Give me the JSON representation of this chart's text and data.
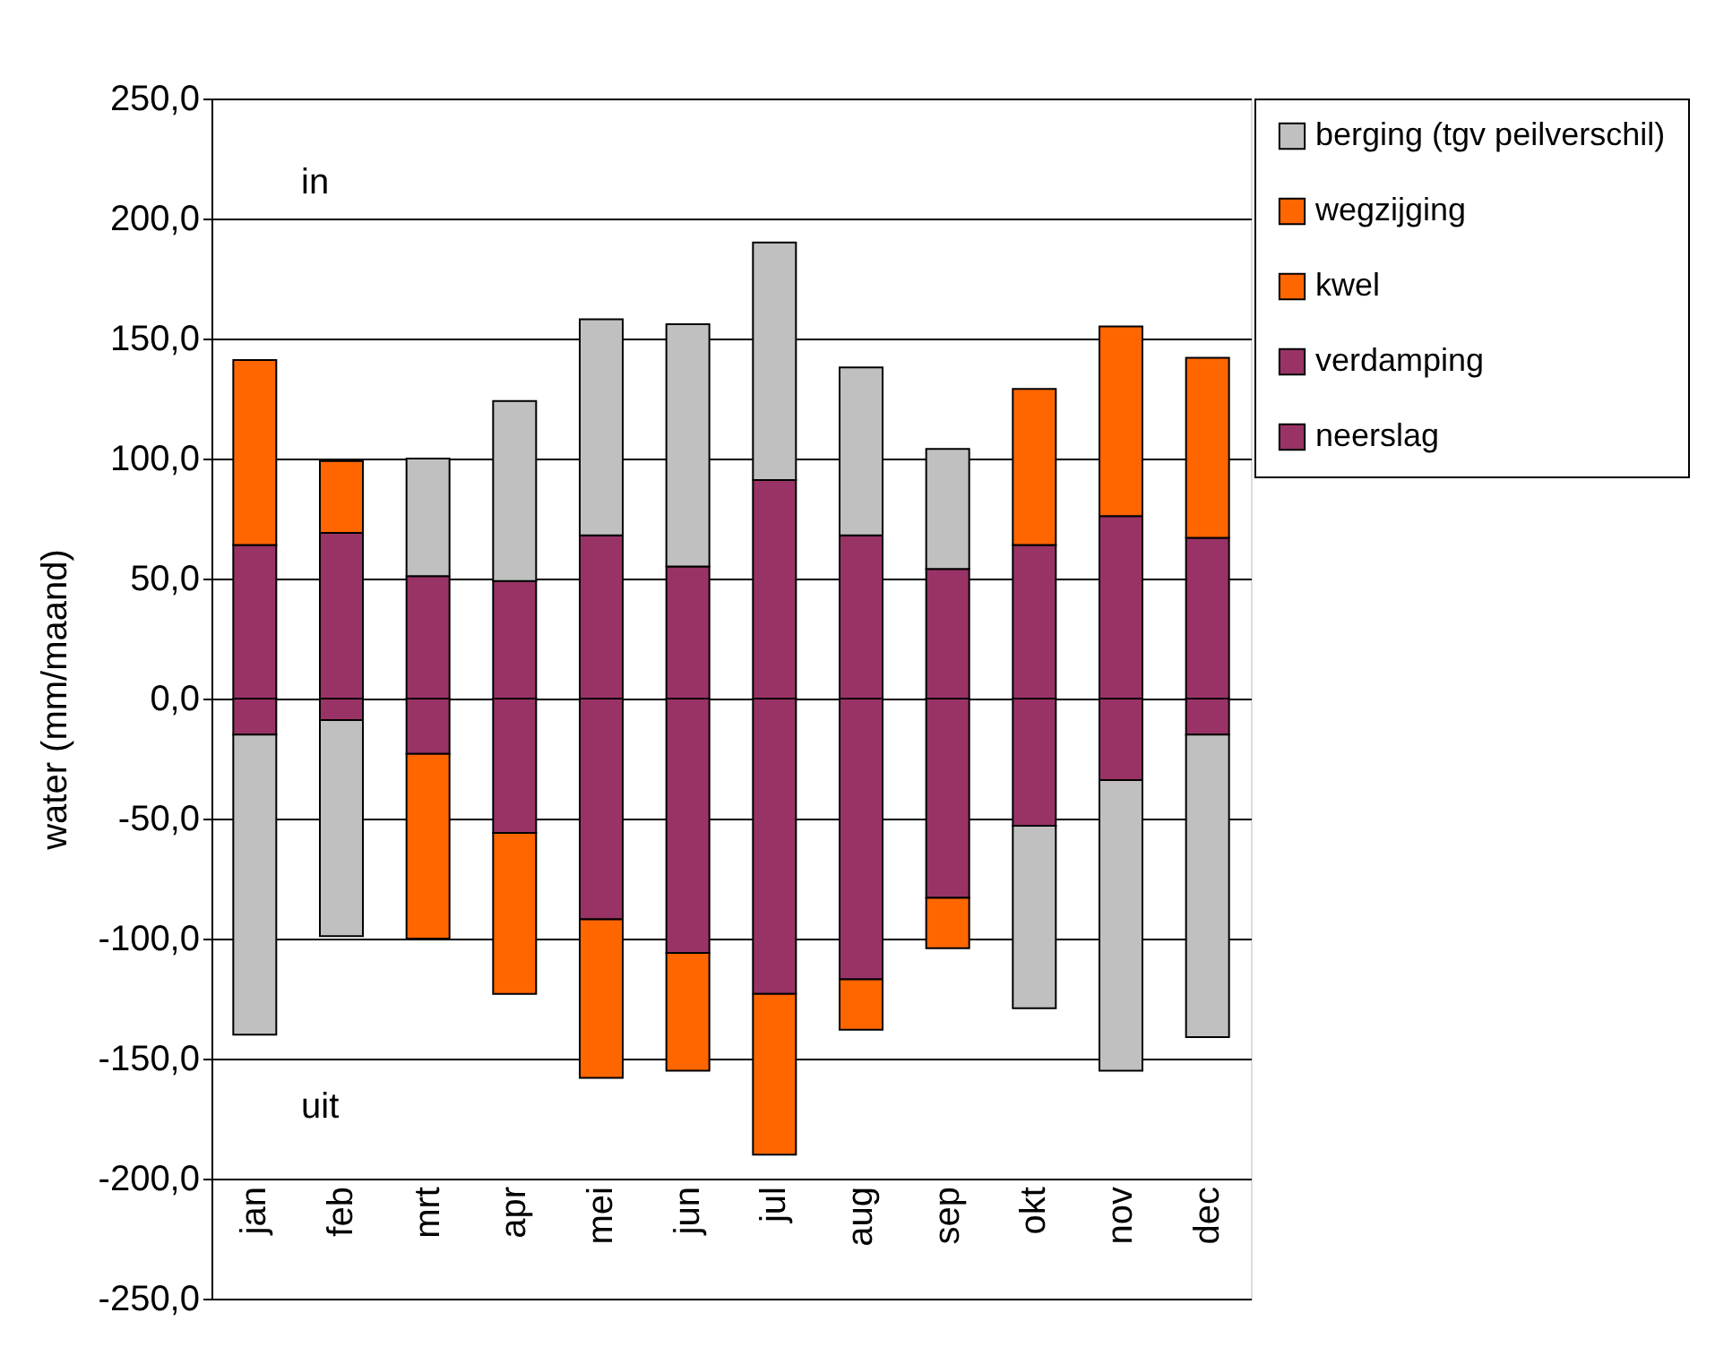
{
  "chart_data": {
    "type": "bar",
    "stacked": true,
    "ylabel": "water (mm/maand)",
    "categories": [
      "jan",
      "feb",
      "mrt",
      "apr",
      "mei",
      "jun",
      "jul",
      "aug",
      "sep",
      "okt",
      "nov",
      "dec"
    ],
    "series": [
      {
        "name": "neerslag",
        "color": "#993366",
        "values": [
          64,
          69,
          51,
          49,
          68,
          55,
          91,
          68,
          54,
          64,
          76,
          67
        ]
      },
      {
        "name": "verdamping",
        "color": "#993366",
        "values": [
          -15,
          -9,
          -23,
          -56,
          -92,
          -106,
          -123,
          -117,
          -83,
          -53,
          -34,
          -15
        ]
      },
      {
        "name": "kwel",
        "color": "#ff6600",
        "values": [
          77,
          30,
          null,
          null,
          null,
          null,
          null,
          null,
          null,
          65,
          79,
          75
        ]
      },
      {
        "name": "wegzijging",
        "color": "#ff6600",
        "values": [
          null,
          null,
          -77,
          -67,
          -66,
          -49,
          -67,
          -21,
          -21,
          null,
          null,
          null
        ]
      },
      {
        "name": "berging (tgv peilverschil)",
        "color": "#c0c0c0",
        "values": [
          -125,
          -90,
          49,
          75,
          90,
          101,
          99,
          70,
          50,
          -76,
          -121,
          -126
        ]
      }
    ],
    "ylim": [
      -250,
      250
    ],
    "yticks": [
      {
        "value": -250,
        "label": "-250,0"
      },
      {
        "value": -200,
        "label": "-200,0"
      },
      {
        "value": -150,
        "label": "-150,0"
      },
      {
        "value": -100,
        "label": "-100,0"
      },
      {
        "value": -50,
        "label": "-50,0"
      },
      {
        "value": 0,
        "label": "0,0"
      },
      {
        "value": 50,
        "label": "50,0"
      },
      {
        "value": 100,
        "label": "100,0"
      },
      {
        "value": 150,
        "label": "150,0"
      },
      {
        "value": 200,
        "label": "200,0"
      },
      {
        "value": 250,
        "label": "250,0"
      }
    ],
    "grid": "y",
    "legend": "right",
    "annotations": [
      "in",
      "uit"
    ]
  }
}
